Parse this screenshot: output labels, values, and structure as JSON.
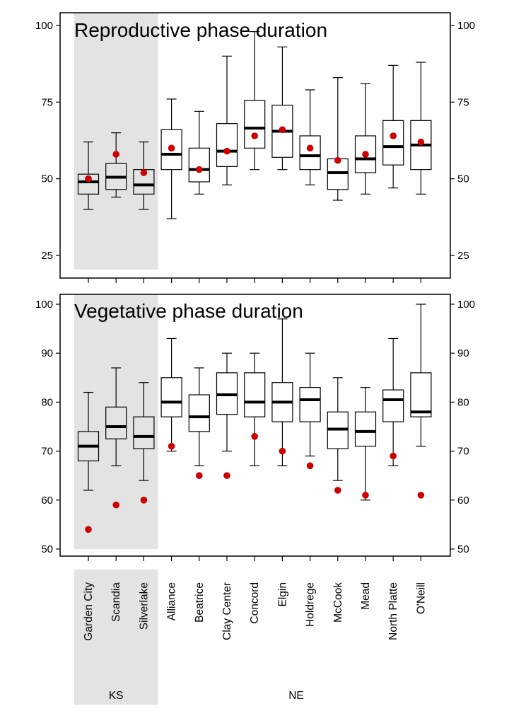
{
  "sites": [
    "Garden City",
    "Scandia",
    "Silverlake",
    "Alliance",
    "Beatrice",
    "Clay Center",
    "Concord",
    "Elgin",
    "Holdrege",
    "McCook",
    "Mead",
    "North Platte",
    "O'Neill"
  ],
  "states": [
    {
      "label": "KS",
      "from": 0,
      "to": 2,
      "shaded": true
    },
    {
      "label": "NE",
      "from": 3,
      "to": 12,
      "shaded": false
    }
  ],
  "colors": {
    "point": "#cc0000",
    "shade": "#e3e3e3"
  },
  "chart_data": [
    {
      "type": "box",
      "title": "Reproductive phase duration",
      "ylim": [
        16,
        102
      ],
      "yticks": [
        25,
        50,
        75,
        100
      ],
      "categories": [
        "Garden City",
        "Scandia",
        "Silverlake",
        "Alliance",
        "Beatrice",
        "Clay Center",
        "Concord",
        "Elgin",
        "Holdrege",
        "McCook",
        "Mead",
        "North Platte",
        "O'Neill"
      ],
      "boxes": [
        {
          "min": 40,
          "q1": 45,
          "median": 49,
          "q3": 51.5,
          "max": 62,
          "point": 50
        },
        {
          "min": 44,
          "q1": 46.5,
          "median": 50.5,
          "q3": 55,
          "max": 65,
          "point": 58
        },
        {
          "min": 40,
          "q1": 45,
          "median": 48,
          "q3": 53,
          "max": 62,
          "point": 52
        },
        {
          "min": 37,
          "q1": 53,
          "median": 58,
          "q3": 66,
          "max": 76,
          "point": 60
        },
        {
          "min": 45,
          "q1": 49,
          "median": 53,
          "q3": 60,
          "max": 72,
          "point": 53
        },
        {
          "min": 48,
          "q1": 54,
          "median": 59,
          "q3": 68,
          "max": 90,
          "point": 59
        },
        {
          "min": 53,
          "q1": 60,
          "median": 66.5,
          "q3": 75.5,
          "max": 98,
          "point": 64
        },
        {
          "min": 53,
          "q1": 57,
          "median": 65.5,
          "q3": 74,
          "max": 93,
          "point": 66
        },
        {
          "min": 48,
          "q1": 53,
          "median": 57.5,
          "q3": 64,
          "max": 79,
          "point": 60
        },
        {
          "min": 43,
          "q1": 46.5,
          "median": 52,
          "q3": 56.5,
          "max": 83,
          "point": 56
        },
        {
          "min": 45,
          "q1": 52,
          "median": 56.5,
          "q3": 64,
          "max": 81,
          "point": 58
        },
        {
          "min": 47,
          "q1": 54.5,
          "median": 60.5,
          "q3": 69,
          "max": 87,
          "point": 64
        },
        {
          "min": 45,
          "q1": 53,
          "median": 61,
          "q3": 69,
          "max": 88,
          "point": 62
        }
      ]
    },
    {
      "type": "box",
      "title": "Vegetative phase duration",
      "ylim": [
        48.5,
        102
      ],
      "yticks": [
        50,
        60,
        70,
        80,
        90,
        100
      ],
      "categories": [
        "Garden City",
        "Scandia",
        "Silverlake",
        "Alliance",
        "Beatrice",
        "Clay Center",
        "Concord",
        "Elgin",
        "Holdrege",
        "McCook",
        "Mead",
        "North Platte",
        "O'Neill"
      ],
      "boxes": [
        {
          "min": 62,
          "q1": 68,
          "median": 71,
          "q3": 74,
          "max": 82,
          "point": 54
        },
        {
          "min": 67,
          "q1": 72.5,
          "median": 75,
          "q3": 79,
          "max": 87,
          "point": 59
        },
        {
          "min": 64,
          "q1": 70.5,
          "median": 73,
          "q3": 77,
          "max": 84,
          "point": 60
        },
        {
          "min": 70,
          "q1": 77,
          "median": 80,
          "q3": 85,
          "max": 93,
          "point": 71
        },
        {
          "min": 67,
          "q1": 74,
          "median": 77,
          "q3": 81.5,
          "max": 87,
          "point": 65
        },
        {
          "min": 70,
          "q1": 77.5,
          "median": 81.5,
          "q3": 86,
          "max": 90,
          "point": 65
        },
        {
          "min": 67,
          "q1": 77,
          "median": 80,
          "q3": 86,
          "max": 90,
          "point": 73
        },
        {
          "min": 67,
          "q1": 76,
          "median": 80,
          "q3": 84,
          "max": 97,
          "point": 70
        },
        {
          "min": 69,
          "q1": 76,
          "median": 80.5,
          "q3": 83,
          "max": 90,
          "point": 67
        },
        {
          "min": 64,
          "q1": 70.5,
          "median": 74.5,
          "q3": 78,
          "max": 85,
          "point": 62
        },
        {
          "min": 60,
          "q1": 71,
          "median": 74,
          "q3": 78,
          "max": 83,
          "point": 61
        },
        {
          "min": 67,
          "q1": 76,
          "median": 80.5,
          "q3": 82.5,
          "max": 93,
          "point": 69
        },
        {
          "min": 71,
          "q1": 77,
          "median": 78,
          "q3": 86,
          "max": 100,
          "point": 61
        }
      ]
    }
  ]
}
